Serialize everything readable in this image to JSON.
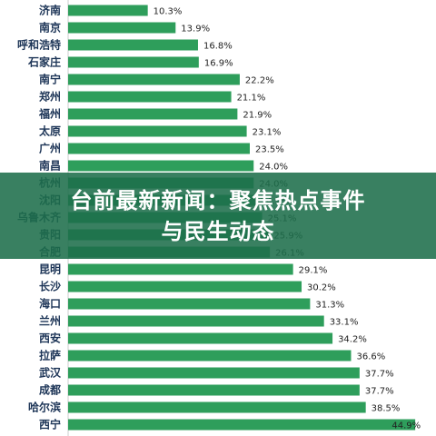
{
  "chart_data": {
    "type": "bar",
    "orientation": "horizontal",
    "categories": [
      "济南",
      "南京",
      "呼和浩特",
      "石家庄",
      "南宁",
      "郑州",
      "福州",
      "太原",
      "广州",
      "南昌",
      "杭州",
      "沈阳",
      "乌鲁木齐",
      "贵阳",
      "合肥",
      "昆明",
      "长沙",
      "海口",
      "兰州",
      "西安",
      "拉萨",
      "武汉",
      "成都",
      "哈尔滨",
      "西宁"
    ],
    "values": [
      10.3,
      13.9,
      16.8,
      16.9,
      22.2,
      21.1,
      21.9,
      23.1,
      23.5,
      24.0,
      24.0,
      24.2,
      25.1,
      25.9,
      26.1,
      29.1,
      30.2,
      31.3,
      33.1,
      34.2,
      36.6,
      37.7,
      37.7,
      38.5,
      44.9
    ],
    "value_labels": [
      "10.3%",
      "13.9%",
      "16.8%",
      "16.9%",
      "22.2%",
      "21.1%",
      "21.9%",
      "23.1%",
      "23.5%",
      "24.0%",
      "24.0%",
      "24.2%",
      "25.1%",
      "25.9%",
      "26.1%",
      "29.1%",
      "30.2%",
      "31.3%",
      "33.1%",
      "34.2%",
      "36.6%",
      "37.7%",
      "37.7%",
      "38.5%",
      "44.9%"
    ],
    "xlim": [
      0,
      47
    ],
    "bar_color": "#2e9e5b",
    "grid": false
  },
  "banner": {
    "line1": "台前最新新闻：聚焦热点事件",
    "line2": "与民生动态",
    "color": "#1e6e4b"
  }
}
